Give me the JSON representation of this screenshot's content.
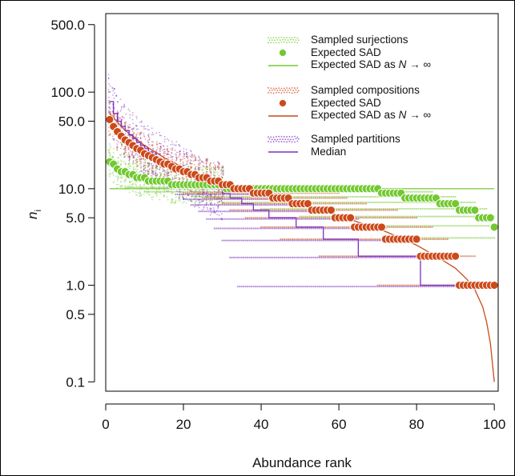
{
  "chart_data": {
    "type": "scatter",
    "title": "",
    "xlabel": "Abundance rank",
    "ylabel": "n_i",
    "ylabel_main": "n",
    "ylabel_sub": "i",
    "y_scale": "log",
    "xlim": [
      0,
      101
    ],
    "ylim": [
      0.08,
      650
    ],
    "x_ticks": [
      0,
      20,
      40,
      60,
      80,
      100
    ],
    "x_tick_labels": [
      "0",
      "20",
      "40",
      "60",
      "80",
      "100"
    ],
    "y_ticks": [
      0.1,
      0.5,
      1,
      5,
      10,
      50,
      100,
      500
    ],
    "y_tick_labels": [
      "0.1",
      "0.5",
      "1.0",
      "5.0",
      "10.0",
      "50.0",
      "100.0",
      "500.0"
    ],
    "grid": false,
    "legend_position": "top-right",
    "legend": {
      "surjections_sampled": "Sampled surjections",
      "surjections_expected": "Expected SAD",
      "surjections_limit_pre": "Expected SAD as ",
      "surjections_limit_math": "N → ∞",
      "compositions_sampled": "Sampled compositions",
      "compositions_expected": "Expected SAD",
      "compositions_limit_pre": "Expected SAD as ",
      "compositions_limit_math": "N → ∞",
      "partitions_sampled": "Sampled partitions",
      "partitions_median": "Median"
    },
    "colors": {
      "surjections": "#72c930",
      "compositions": "#cc4a1a",
      "partitions": "#7b2fbe"
    },
    "series": [
      {
        "name": "Expected SAD (surjections)",
        "kind": "expected-points",
        "color": "#72c930",
        "x": [
          1,
          2,
          3,
          4,
          5,
          6,
          7,
          8,
          9,
          10,
          11,
          12,
          13,
          14,
          15,
          16,
          17,
          18,
          19,
          20,
          21,
          22,
          23,
          24,
          25,
          26,
          27,
          28,
          29,
          30,
          31,
          32,
          33,
          34,
          35,
          36,
          37,
          38,
          39,
          40,
          41,
          42,
          43,
          44,
          45,
          46,
          47,
          48,
          49,
          50,
          51,
          52,
          53,
          54,
          55,
          56,
          57,
          58,
          59,
          60,
          61,
          62,
          63,
          64,
          65,
          66,
          67,
          68,
          69,
          70,
          71,
          72,
          73,
          74,
          75,
          76,
          77,
          78,
          79,
          80,
          81,
          82,
          83,
          84,
          85,
          86,
          87,
          88,
          89,
          90,
          91,
          92,
          93,
          94,
          95,
          96,
          97,
          98,
          99,
          100
        ],
        "y": [
          19,
          18,
          16,
          15,
          15,
          14,
          14,
          13,
          13,
          13,
          12,
          12,
          12,
          12,
          12,
          12,
          11,
          11,
          11,
          11,
          11,
          11,
          11,
          11,
          11,
          11,
          11,
          11,
          11,
          11,
          10,
          10,
          10,
          10,
          10,
          10,
          10,
          10,
          10,
          10,
          10,
          10,
          10,
          10,
          10,
          10,
          10,
          10,
          10,
          10,
          10,
          10,
          10,
          10,
          10,
          10,
          10,
          10,
          10,
          10,
          10,
          10,
          10,
          10,
          10,
          10,
          10,
          10,
          10,
          10,
          9,
          9,
          9,
          9,
          9,
          9,
          8,
          8,
          8,
          8,
          8,
          8,
          8,
          8,
          8,
          7,
          7,
          7,
          7,
          7,
          6,
          6,
          6,
          6,
          6,
          5,
          5,
          5,
          5,
          4
        ]
      },
      {
        "name": "Expected SAD as N → ∞ (surjections)",
        "kind": "limit-line",
        "color": "#72c930",
        "x": [
          1,
          100
        ],
        "y": [
          10,
          10
        ]
      },
      {
        "name": "Expected SAD (compositions)",
        "kind": "expected-points",
        "color": "#cc4a1a",
        "x": [
          1,
          2,
          3,
          4,
          5,
          6,
          7,
          8,
          9,
          10,
          11,
          12,
          13,
          14,
          15,
          16,
          17,
          18,
          19,
          20,
          21,
          22,
          23,
          24,
          25,
          26,
          27,
          28,
          29,
          30,
          31,
          32,
          33,
          34,
          35,
          36,
          37,
          38,
          39,
          40,
          41,
          42,
          43,
          44,
          45,
          46,
          47,
          48,
          49,
          50,
          51,
          52,
          53,
          54,
          55,
          56,
          57,
          58,
          59,
          60,
          61,
          62,
          63,
          64,
          65,
          66,
          67,
          68,
          69,
          70,
          71,
          72,
          73,
          74,
          75,
          76,
          77,
          78,
          79,
          80,
          81,
          82,
          83,
          84,
          85,
          86,
          87,
          88,
          89,
          90,
          91,
          92,
          93,
          94,
          95,
          96,
          97,
          98,
          99,
          100
        ],
        "y": [
          52,
          44,
          39,
          35,
          32,
          30,
          28,
          26,
          25,
          23,
          22,
          21,
          20,
          19,
          18,
          18,
          17,
          16,
          16,
          15,
          15,
          14,
          14,
          13,
          13,
          13,
          12,
          12,
          12,
          11,
          11,
          11,
          10,
          10,
          10,
          10,
          10,
          9,
          9,
          9,
          9,
          9,
          8,
          8,
          8,
          8,
          8,
          7,
          7,
          7,
          7,
          7,
          6,
          6,
          6,
          6,
          6,
          6,
          5,
          5,
          5,
          5,
          5,
          4,
          4,
          4,
          4,
          4,
          4,
          4,
          4,
          3,
          3,
          3,
          3,
          3,
          3,
          3,
          3,
          3,
          2,
          2,
          2,
          2,
          2,
          2,
          2,
          2,
          2,
          2,
          1,
          1,
          1,
          1,
          1,
          1,
          1,
          1,
          1,
          1
        ]
      },
      {
        "name": "Expected SAD as N → ∞ (compositions)",
        "kind": "limit-line",
        "color": "#cc4a1a",
        "x": [
          1,
          5,
          10,
          15,
          20,
          25,
          30,
          35,
          40,
          45,
          50,
          55,
          60,
          65,
          70,
          75,
          80,
          85,
          90,
          93,
          95,
          97,
          98,
          99,
          100
        ],
        "y": [
          60,
          40,
          28,
          21,
          16.5,
          13.5,
          11.5,
          10,
          9,
          8,
          7,
          6.2,
          5.3,
          4.5,
          3.9,
          3.2,
          2.6,
          2.0,
          1.5,
          1.15,
          0.9,
          0.6,
          0.42,
          0.25,
          0.1
        ]
      },
      {
        "name": "Median (partitions)",
        "kind": "median-step",
        "color": "#7b2fbe",
        "x": [
          1,
          2,
          3,
          4,
          5,
          6,
          7,
          8,
          9,
          10,
          11,
          12,
          13,
          14,
          15,
          16,
          17,
          18,
          19,
          20,
          21,
          22,
          23,
          24,
          25,
          26,
          27,
          28,
          29,
          30,
          31,
          32,
          33,
          34,
          35,
          36,
          37,
          38,
          39,
          40,
          41,
          42,
          43,
          44,
          45,
          46,
          47,
          48,
          49,
          50,
          51,
          52,
          53,
          54,
          55,
          56,
          57,
          58,
          59,
          60,
          61,
          62,
          63,
          64,
          65,
          66,
          67,
          68,
          69,
          70,
          71,
          72,
          73,
          74,
          75,
          76,
          77,
          78,
          79,
          80,
          81,
          82,
          83,
          84,
          85,
          86,
          87,
          88,
          89,
          90,
          91,
          92,
          93,
          94,
          95,
          96,
          97,
          98,
          99,
          100
        ],
        "y": [
          80,
          60,
          50,
          44,
          40,
          36,
          33,
          30,
          28,
          26,
          24,
          23,
          21,
          20,
          19,
          18,
          17,
          16,
          15,
          14,
          14,
          13,
          12,
          12,
          11,
          11,
          10,
          10,
          10,
          9,
          9,
          8,
          8,
          8,
          7,
          7,
          7,
          6,
          6,
          6,
          6,
          5,
          5,
          5,
          5,
          5,
          5,
          5,
          4,
          4,
          4,
          4,
          4,
          4,
          4,
          3,
          3,
          3,
          3,
          3,
          3,
          3,
          3,
          3,
          2,
          2,
          2,
          2,
          2,
          2,
          2,
          2,
          2,
          2,
          2,
          2,
          2,
          2,
          2,
          2,
          1,
          1,
          1,
          1,
          1,
          1,
          1,
          1,
          1,
          1,
          1,
          1,
          1,
          1,
          1,
          1,
          1,
          1,
          1,
          1
        ]
      }
    ],
    "sampled_clouds": [
      {
        "name": "Sampled surjections",
        "color": "#72c930",
        "levels": [
          {
            "y": 10,
            "x": [
              5,
              70
            ]
          },
          {
            "y": 9,
            "x": [
              10,
              84
            ]
          },
          {
            "y": 8,
            "x": [
              22,
              90
            ]
          },
          {
            "y": 7,
            "x": [
              30,
              95
            ]
          },
          {
            "y": 6,
            "x": [
              40,
              98
            ]
          },
          {
            "y": 5,
            "x": [
              50,
              100
            ]
          },
          {
            "y": 4,
            "x": [
              65,
              100
            ]
          },
          {
            "y": 3,
            "x": [
              80,
              100
            ]
          }
        ]
      },
      {
        "name": "Sampled compositions",
        "color": "#cc4a1a",
        "levels": [
          {
            "y": 9,
            "x": [
              20,
              60
            ]
          },
          {
            "y": 8,
            "x": [
              25,
              62
            ]
          },
          {
            "y": 7,
            "x": [
              30,
              67
            ]
          },
          {
            "y": 6,
            "x": [
              32,
              75
            ]
          },
          {
            "y": 5,
            "x": [
              36,
              80
            ]
          },
          {
            "y": 4,
            "x": [
              40,
              84
            ]
          },
          {
            "y": 3,
            "x": [
              45,
              88
            ]
          },
          {
            "y": 2,
            "x": [
              55,
              95
            ]
          },
          {
            "y": 1,
            "x": [
              70,
              100
            ]
          }
        ]
      },
      {
        "name": "Sampled partitions",
        "color": "#7b2fbe",
        "levels": [
          {
            "y": 9,
            "x": [
              18,
              40
            ]
          },
          {
            "y": 8,
            "x": [
              20,
              45
            ]
          },
          {
            "y": 7,
            "x": [
              22,
              50
            ]
          },
          {
            "y": 6,
            "x": [
              24,
              55
            ]
          },
          {
            "y": 5,
            "x": [
              26,
              65
            ]
          },
          {
            "y": 4,
            "x": [
              28,
              72
            ]
          },
          {
            "y": 3,
            "x": [
              30,
              80
            ]
          },
          {
            "y": 2,
            "x": [
              32,
              90
            ]
          },
          {
            "y": 1,
            "x": [
              34,
              100
            ]
          }
        ]
      }
    ]
  }
}
